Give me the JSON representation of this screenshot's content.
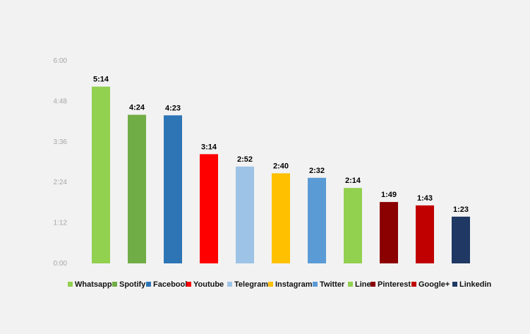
{
  "chart_data": {
    "type": "bar",
    "categories": [
      "Whatsapp",
      "Spotify",
      "Facebook",
      "Youtube",
      "Telegram",
      "Instagram",
      "Twitter",
      "Line",
      "Pinterest",
      "Google+",
      "Linkedin"
    ],
    "values_minutes": [
      314,
      264,
      263,
      194,
      172,
      160,
      152,
      134,
      109,
      103,
      83
    ],
    "value_labels": [
      "5:14",
      "4:24",
      "4:23",
      "3:14",
      "2:52",
      "2:40",
      "2:32",
      "2:14",
      "1:49",
      "1:43",
      "1:23"
    ],
    "colors": [
      "#92d050",
      "#70ad47",
      "#2e75b6",
      "#ff0000",
      "#9dc3e6",
      "#ffc000",
      "#5b9bd5",
      "#92d050",
      "#8b0000",
      "#c00000",
      "#1f3864"
    ],
    "yaxis": {
      "ticks_minutes": [
        0,
        72,
        144,
        216,
        288,
        360
      ],
      "tick_labels": [
        "0:00",
        "1:12",
        "2:24",
        "3:36",
        "4:48",
        "6:00"
      ],
      "ylim_minutes": [
        0,
        360
      ]
    },
    "legend_position": "bottom",
    "grid": false
  }
}
